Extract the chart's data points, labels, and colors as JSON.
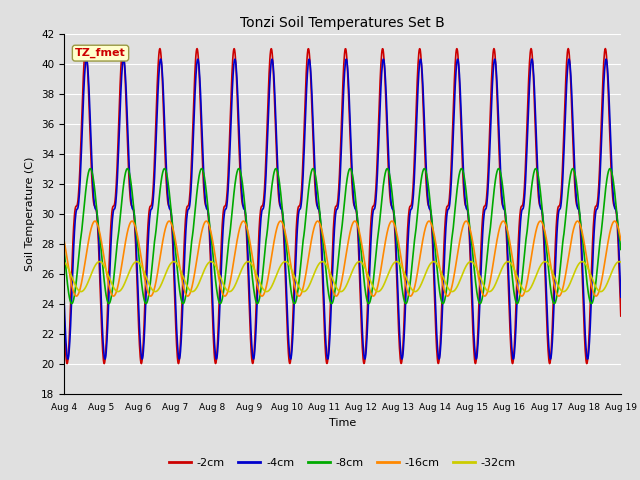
{
  "title": "Tonzi Soil Temperatures Set B",
  "xlabel": "Time",
  "ylabel": "Soil Temperature (C)",
  "ylim": [
    18,
    42
  ],
  "xlim": [
    0,
    360
  ],
  "series_names": [
    "-2cm",
    "-4cm",
    "-8cm",
    "-16cm",
    "-32cm"
  ],
  "series_colors": [
    "#cc0000",
    "#0000cc",
    "#00aa00",
    "#ff8800",
    "#cccc00"
  ],
  "series_linewidths": [
    1.2,
    1.2,
    1.2,
    1.2,
    1.2
  ],
  "annotation_text": "TZ_fmet",
  "annotation_color": "#cc0000",
  "annotation_bg": "#ffffcc",
  "annotation_border": "#999944",
  "yticks": [
    18,
    20,
    22,
    24,
    26,
    28,
    30,
    32,
    34,
    36,
    38,
    40,
    42
  ],
  "xtick_labels": [
    "Aug 4",
    "Aug 5",
    "Aug 6",
    "Aug 7",
    "Aug 8",
    "Aug 9",
    "Aug 10",
    "Aug 11",
    "Aug 12",
    "Aug 13",
    "Aug 14",
    "Aug 15",
    "Aug 16",
    "Aug 17",
    "Aug 18",
    "Aug 19"
  ],
  "xtick_positions": [
    0,
    24,
    48,
    72,
    96,
    120,
    144,
    168,
    192,
    216,
    240,
    264,
    288,
    312,
    336,
    360
  ],
  "bg_color": "#e0e0e0",
  "plot_bg_color": "#e0e0e0",
  "grid_color": "#ffffff"
}
